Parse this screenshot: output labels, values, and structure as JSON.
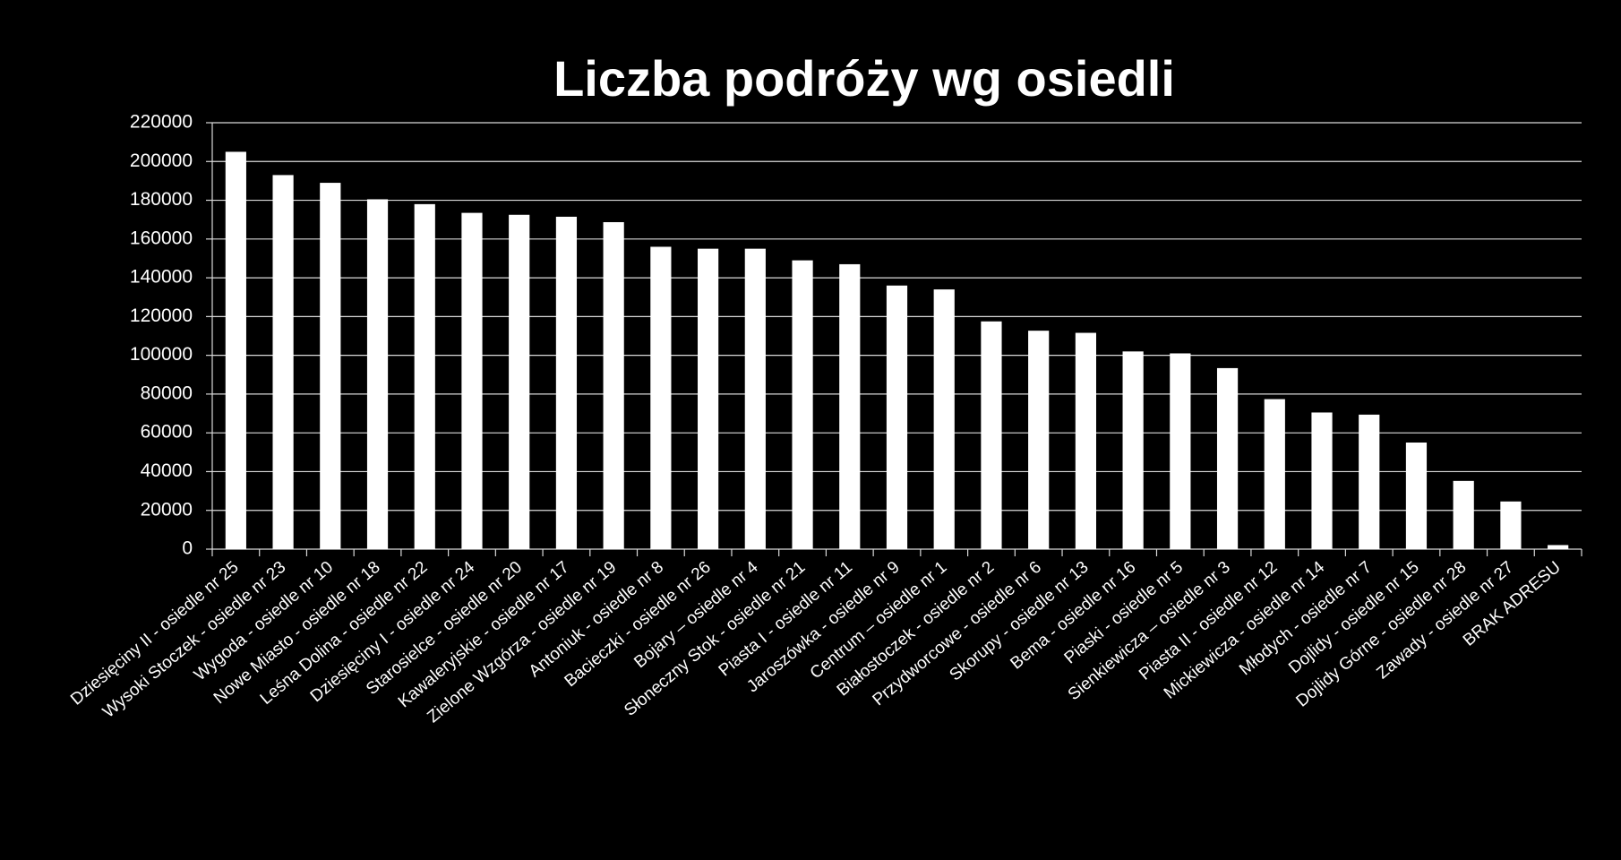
{
  "chart_data": {
    "type": "bar",
    "title": "Liczba podróży wg osiedli",
    "categories": [
      "Dziesięciny II - osiedle nr 25",
      "Wysoki Stoczek - osiedle nr 23",
      "Wygoda - osiedle nr 10",
      "Nowe Miasto - osiedle nr 18",
      "Leśna Dolina - osiedle nr 22",
      "Dziesięciny I - osiedle nr 24",
      "Starosielce - osiedle nr 20",
      "Kawaleryjskie - osiedle nr 17",
      "Zielone Wzgórza - osiedle nr 19",
      "Antoniuk - osiedle nr 8",
      "Bacieczki - osiedle nr 26",
      "Bojary – osiedle nr 4",
      "Słoneczny Stok - osiedle nr 21",
      "Piasta I - osiedle nr 11",
      "Jaroszówka - osiedle nr 9",
      "Centrum – osiedle nr 1",
      "Białostoczek - osiedle nr 2",
      "Przydworcowe - osiedle nr 6",
      "Skorupy - osiedle nr 13",
      "Bema - osiedle nr 16",
      "Piaski - osiedle nr 5",
      "Sienkiewicza – osiedle nr 3",
      "Piasta II - osiedle nr 12",
      "Mickiewicza - osiedle nr 14",
      "Młodych - osiedle nr 7",
      "Dojlidy - osiedle nr 15",
      "Dojlidy Górne - osiedle nr 28",
      "Zawady - osiedle nr 27",
      "BRAK ADRESU"
    ],
    "values": [
      205000,
      193000,
      189000,
      180500,
      178000,
      173500,
      172500,
      171500,
      168700,
      156000,
      155000,
      155000,
      149000,
      147000,
      136000,
      134000,
      117500,
      112700,
      111600,
      102000,
      101000,
      93400,
      77400,
      70500,
      69400,
      55000,
      35200,
      24600,
      2100
    ],
    "color": "#ffffff",
    "ylim": [
      0,
      220000
    ],
    "yticks": [
      0,
      20000,
      40000,
      60000,
      80000,
      100000,
      120000,
      140000,
      160000,
      180000,
      200000,
      220000
    ],
    "grid": true
  }
}
